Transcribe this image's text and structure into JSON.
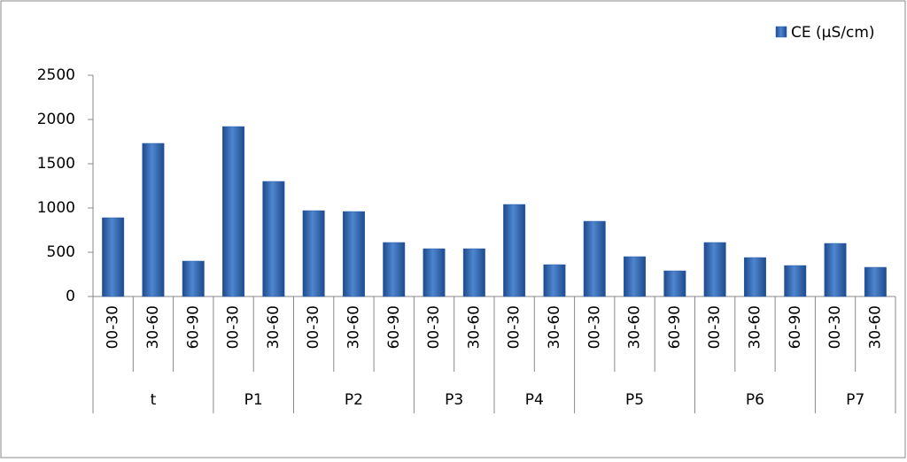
{
  "chart_data": {
    "type": "bar",
    "groups": [
      {
        "name": "t",
        "categories": [
          "00-30",
          "30-60",
          "60-90"
        ]
      },
      {
        "name": "P1",
        "categories": [
          "00-30",
          "30-60"
        ]
      },
      {
        "name": "P2",
        "categories": [
          "00-30",
          "30-60",
          "60-90"
        ]
      },
      {
        "name": "P3",
        "categories": [
          "00-30",
          "30-60"
        ]
      },
      {
        "name": "P4",
        "categories": [
          "00-30",
          "30-60"
        ]
      },
      {
        "name": "P5",
        "categories": [
          "00-30",
          "30-60",
          "60-90"
        ]
      },
      {
        "name": "P6",
        "categories": [
          "00-30",
          "30-60",
          "60-90"
        ]
      },
      {
        "name": "P7",
        "categories": [
          "00-30",
          "30-60"
        ]
      }
    ],
    "series": [
      {
        "name": "CE (µS/cm)",
        "color": "#2e5fa8",
        "values": [
          890,
          1730,
          400,
          1920,
          1300,
          970,
          960,
          610,
          540,
          540,
          1040,
          360,
          850,
          450,
          290,
          610,
          440,
          350,
          600,
          330
        ]
      }
    ],
    "ylim": [
      0,
      2500
    ],
    "yticks": [
      0,
      500,
      1000,
      1500,
      2000,
      2500
    ],
    "legend": "top-right"
  }
}
